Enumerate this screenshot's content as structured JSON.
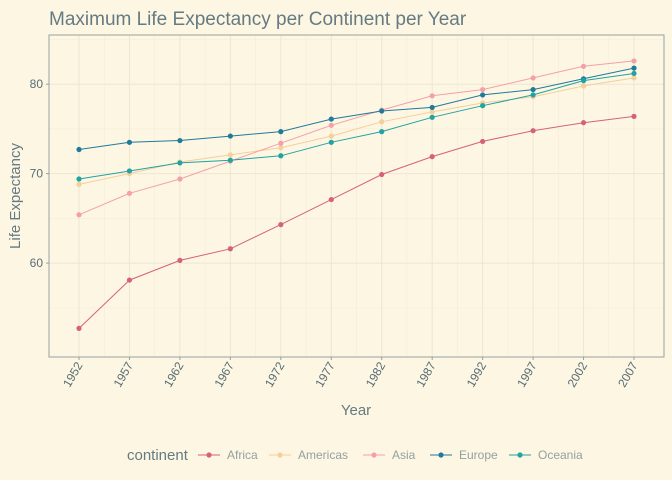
{
  "chart_data": {
    "type": "line",
    "title": "Maximum Life Expectancy per Continent per Year",
    "xlabel": "Year",
    "ylabel": "Life Expectancy",
    "x": [
      1952,
      1957,
      1962,
      1967,
      1972,
      1977,
      1982,
      1987,
      1992,
      1997,
      2002,
      2007
    ],
    "x_tick_labels": [
      "1952",
      "1957",
      "1962",
      "1967",
      "1972",
      "1977",
      "1982",
      "1987",
      "1992",
      "1997",
      "2002",
      "2007"
    ],
    "y_ticks": [
      60,
      70,
      80
    ],
    "y_tick_labels": [
      "60",
      "70",
      "80"
    ],
    "ylim": [
      49.5,
      85.5
    ],
    "grid": true,
    "legend_title": "continent",
    "legend_position": "bottom",
    "series": [
      {
        "name": "Africa",
        "color": "#d5627a",
        "values": [
          52.7,
          58.1,
          60.3,
          61.6,
          64.3,
          67.1,
          69.9,
          71.9,
          73.6,
          74.8,
          75.7,
          76.4
        ]
      },
      {
        "name": "Americas",
        "color": "#f5cf9c",
        "values": [
          68.8,
          70.0,
          71.3,
          72.1,
          72.9,
          74.2,
          75.8,
          76.9,
          77.9,
          78.6,
          79.8,
          80.7
        ]
      },
      {
        "name": "Asia",
        "color": "#f4a0a8",
        "values": [
          65.4,
          67.8,
          69.4,
          71.4,
          73.4,
          75.4,
          77.1,
          78.7,
          79.4,
          80.7,
          82.0,
          82.6
        ]
      },
      {
        "name": "Europe",
        "color": "#1f7a9b",
        "values": [
          72.7,
          73.5,
          73.7,
          74.2,
          74.7,
          76.1,
          77.0,
          77.4,
          78.8,
          79.4,
          80.6,
          81.8
        ]
      },
      {
        "name": "Oceania",
        "color": "#20a3a3",
        "values": [
          69.4,
          70.3,
          71.2,
          71.5,
          72.0,
          73.5,
          74.7,
          76.3,
          77.6,
          78.8,
          80.4,
          81.2
        ]
      }
    ]
  },
  "style": {
    "background": "#fdf6e3",
    "panel_border": "#93a1a1",
    "grid_major": "#ede6d1",
    "grid_minor": "#f4edd8"
  }
}
